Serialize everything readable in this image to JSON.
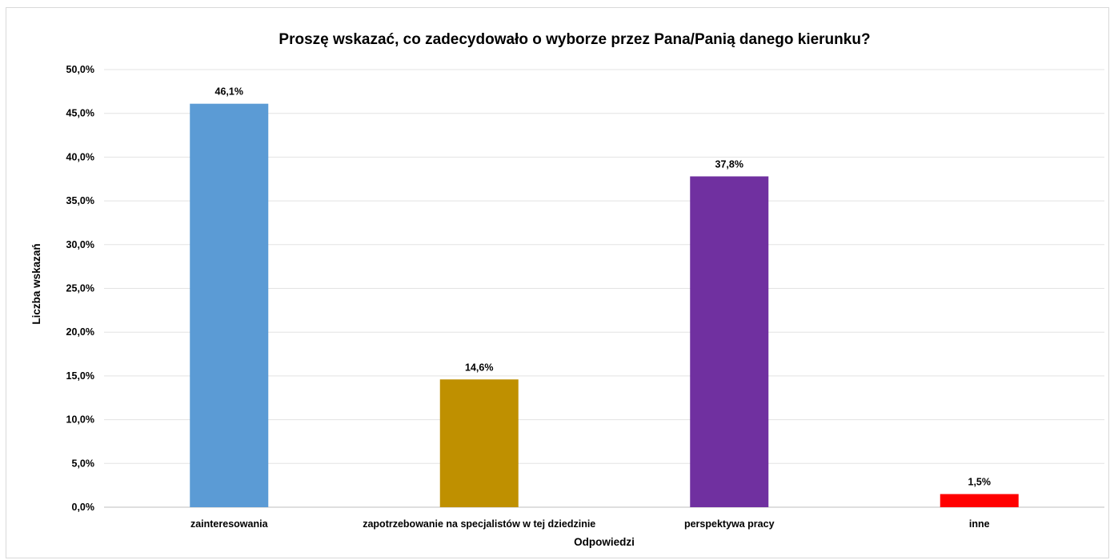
{
  "chart_data": {
    "type": "bar",
    "title": "Proszę wskazać, co zadecydowało o wyborze przez Pana/Panią  danego kierunku?",
    "xlabel": "Odpowiedzi",
    "ylabel": "Liczba wskazań",
    "categories": [
      "zainteresowania",
      "zapotrzebowanie na specjalistów w tej dziedzinie",
      "perspektywa pracy",
      "inne"
    ],
    "values": [
      46.1,
      14.6,
      37.8,
      1.5
    ],
    "value_labels": [
      "46,1%",
      "14,6%",
      "37,8%",
      "1,5%"
    ],
    "bar_colors": [
      "#5b9bd5",
      "#bf9000",
      "#7030a0",
      "#ff0000"
    ],
    "ylim": [
      0,
      50
    ],
    "y_ticks": [
      0,
      5,
      10,
      15,
      20,
      25,
      30,
      35,
      40,
      45,
      50
    ],
    "y_tick_labels": [
      "0,0%",
      "5,0%",
      "10,0%",
      "15,0%",
      "20,0%",
      "25,0%",
      "30,0%",
      "35,0%",
      "40,0%",
      "45,0%",
      "50,0%"
    ],
    "grid": true,
    "legend": "none"
  }
}
